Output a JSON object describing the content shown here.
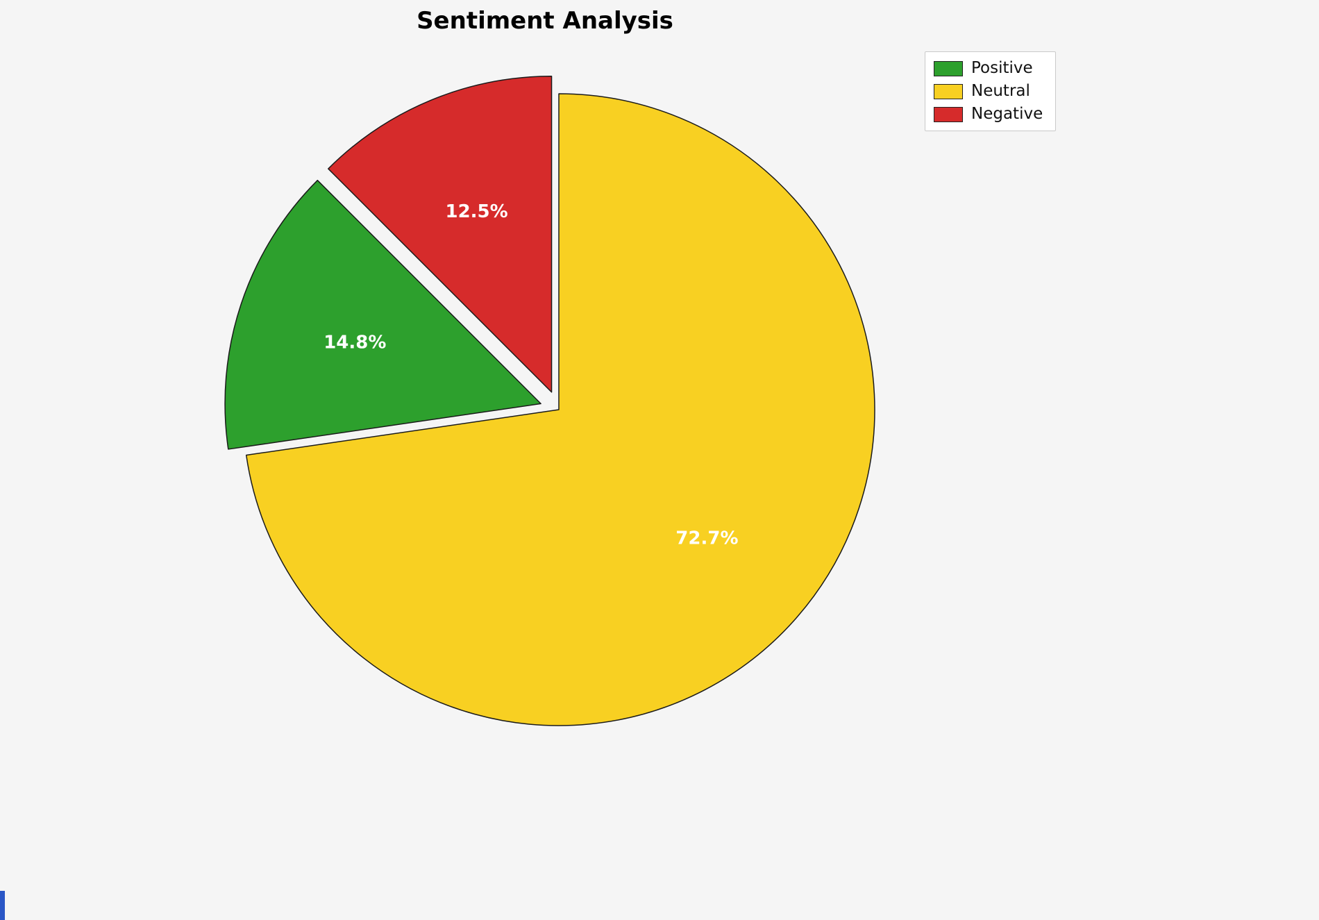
{
  "title": "Sentiment Analysis",
  "background_color": "#f5f5f5",
  "chart_data": {
    "type": "pie",
    "title": "Sentiment Analysis",
    "labels": [
      "Positive",
      "Neutral",
      "Negative"
    ],
    "values": [
      14.8,
      72.7,
      12.5
    ],
    "value_labels": [
      "14.8%",
      "72.7%",
      "12.5%"
    ],
    "colors": [
      "#2da02d",
      "#f8d022",
      "#d62b2b"
    ],
    "explode": [
      0.06,
      0,
      0.06
    ],
    "start_angle": 90,
    "draw_order_ccw": [
      2,
      0,
      1
    ],
    "edge_color": "#1a1a1a",
    "percent_label_color": "#ffffff",
    "legend": {
      "position": "upper right",
      "entries": [
        "Positive",
        "Neutral",
        "Negative"
      ]
    }
  }
}
